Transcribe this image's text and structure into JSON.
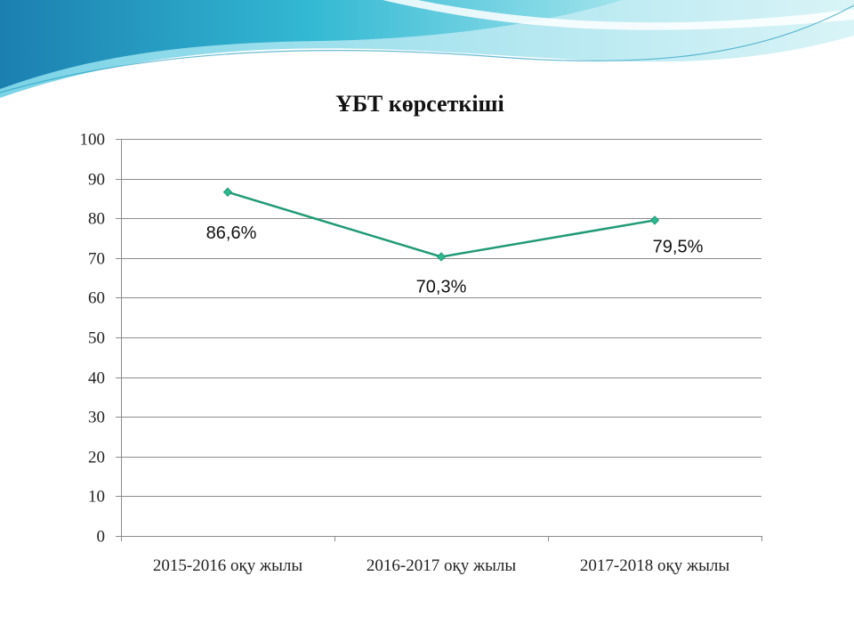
{
  "chart_data": {
    "type": "line",
    "title": "ҰБТ көрсеткіші",
    "categories": [
      "2015-2016 оқу жылы",
      "2016-2017 оқу жылы",
      "2017-2018 оқу жылы"
    ],
    "series": [
      {
        "values": [
          86.6,
          70.3,
          79.5
        ],
        "data_labels": [
          "86,6%",
          "70,3%",
          "79,5%"
        ],
        "color": "#1f9a75"
      }
    ],
    "ylim": [
      0,
      100
    ],
    "yticks": [
      0,
      10,
      20,
      30,
      40,
      50,
      60,
      70,
      80,
      90,
      100
    ],
    "ytick_labels": [
      "0",
      "10",
      "20",
      "30",
      "40",
      "50",
      "60",
      "70",
      "80",
      "90",
      "100"
    ],
    "grid": true,
    "legend": "none"
  },
  "theme": {
    "line_color": "#1f9a75",
    "marker_color": "#2bb88f",
    "banner_color": "#1aa3c8"
  }
}
